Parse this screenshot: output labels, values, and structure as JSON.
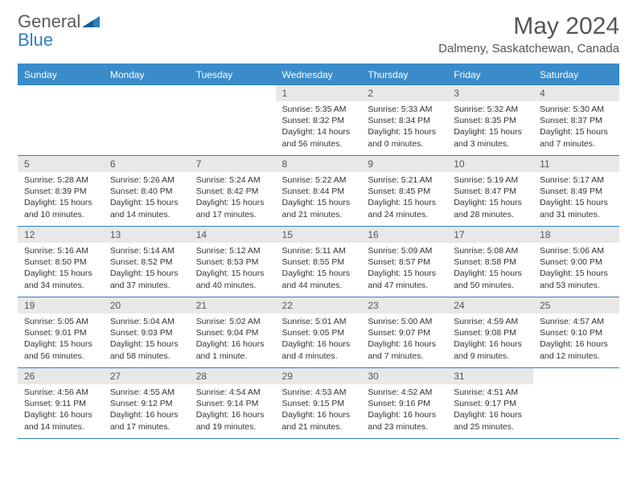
{
  "brand": {
    "part1": "General",
    "part2": "Blue"
  },
  "title": "May 2024",
  "location": "Dalmeny, Saskatchewan, Canada",
  "colors": {
    "header_bg": "#3a8bc9",
    "border": "#2d7fc1",
    "daynum_bg": "#e8e8e8",
    "text": "#333333",
    "title_text": "#555555"
  },
  "weekdays": [
    "Sunday",
    "Monday",
    "Tuesday",
    "Wednesday",
    "Thursday",
    "Friday",
    "Saturday"
  ],
  "weeks": [
    [
      {
        "n": "",
        "sr": "",
        "ss": "",
        "dl": ""
      },
      {
        "n": "",
        "sr": "",
        "ss": "",
        "dl": ""
      },
      {
        "n": "",
        "sr": "",
        "ss": "",
        "dl": ""
      },
      {
        "n": "1",
        "sr": "Sunrise: 5:35 AM",
        "ss": "Sunset: 8:32 PM",
        "dl": "Daylight: 14 hours and 56 minutes."
      },
      {
        "n": "2",
        "sr": "Sunrise: 5:33 AM",
        "ss": "Sunset: 8:34 PM",
        "dl": "Daylight: 15 hours and 0 minutes."
      },
      {
        "n": "3",
        "sr": "Sunrise: 5:32 AM",
        "ss": "Sunset: 8:35 PM",
        "dl": "Daylight: 15 hours and 3 minutes."
      },
      {
        "n": "4",
        "sr": "Sunrise: 5:30 AM",
        "ss": "Sunset: 8:37 PM",
        "dl": "Daylight: 15 hours and 7 minutes."
      }
    ],
    [
      {
        "n": "5",
        "sr": "Sunrise: 5:28 AM",
        "ss": "Sunset: 8:39 PM",
        "dl": "Daylight: 15 hours and 10 minutes."
      },
      {
        "n": "6",
        "sr": "Sunrise: 5:26 AM",
        "ss": "Sunset: 8:40 PM",
        "dl": "Daylight: 15 hours and 14 minutes."
      },
      {
        "n": "7",
        "sr": "Sunrise: 5:24 AM",
        "ss": "Sunset: 8:42 PM",
        "dl": "Daylight: 15 hours and 17 minutes."
      },
      {
        "n": "8",
        "sr": "Sunrise: 5:22 AM",
        "ss": "Sunset: 8:44 PM",
        "dl": "Daylight: 15 hours and 21 minutes."
      },
      {
        "n": "9",
        "sr": "Sunrise: 5:21 AM",
        "ss": "Sunset: 8:45 PM",
        "dl": "Daylight: 15 hours and 24 minutes."
      },
      {
        "n": "10",
        "sr": "Sunrise: 5:19 AM",
        "ss": "Sunset: 8:47 PM",
        "dl": "Daylight: 15 hours and 28 minutes."
      },
      {
        "n": "11",
        "sr": "Sunrise: 5:17 AM",
        "ss": "Sunset: 8:49 PM",
        "dl": "Daylight: 15 hours and 31 minutes."
      }
    ],
    [
      {
        "n": "12",
        "sr": "Sunrise: 5:16 AM",
        "ss": "Sunset: 8:50 PM",
        "dl": "Daylight: 15 hours and 34 minutes."
      },
      {
        "n": "13",
        "sr": "Sunrise: 5:14 AM",
        "ss": "Sunset: 8:52 PM",
        "dl": "Daylight: 15 hours and 37 minutes."
      },
      {
        "n": "14",
        "sr": "Sunrise: 5:12 AM",
        "ss": "Sunset: 8:53 PM",
        "dl": "Daylight: 15 hours and 40 minutes."
      },
      {
        "n": "15",
        "sr": "Sunrise: 5:11 AM",
        "ss": "Sunset: 8:55 PM",
        "dl": "Daylight: 15 hours and 44 minutes."
      },
      {
        "n": "16",
        "sr": "Sunrise: 5:09 AM",
        "ss": "Sunset: 8:57 PM",
        "dl": "Daylight: 15 hours and 47 minutes."
      },
      {
        "n": "17",
        "sr": "Sunrise: 5:08 AM",
        "ss": "Sunset: 8:58 PM",
        "dl": "Daylight: 15 hours and 50 minutes."
      },
      {
        "n": "18",
        "sr": "Sunrise: 5:06 AM",
        "ss": "Sunset: 9:00 PM",
        "dl": "Daylight: 15 hours and 53 minutes."
      }
    ],
    [
      {
        "n": "19",
        "sr": "Sunrise: 5:05 AM",
        "ss": "Sunset: 9:01 PM",
        "dl": "Daylight: 15 hours and 56 minutes."
      },
      {
        "n": "20",
        "sr": "Sunrise: 5:04 AM",
        "ss": "Sunset: 9:03 PM",
        "dl": "Daylight: 15 hours and 58 minutes."
      },
      {
        "n": "21",
        "sr": "Sunrise: 5:02 AM",
        "ss": "Sunset: 9:04 PM",
        "dl": "Daylight: 16 hours and 1 minute."
      },
      {
        "n": "22",
        "sr": "Sunrise: 5:01 AM",
        "ss": "Sunset: 9:05 PM",
        "dl": "Daylight: 16 hours and 4 minutes."
      },
      {
        "n": "23",
        "sr": "Sunrise: 5:00 AM",
        "ss": "Sunset: 9:07 PM",
        "dl": "Daylight: 16 hours and 7 minutes."
      },
      {
        "n": "24",
        "sr": "Sunrise: 4:59 AM",
        "ss": "Sunset: 9:08 PM",
        "dl": "Daylight: 16 hours and 9 minutes."
      },
      {
        "n": "25",
        "sr": "Sunrise: 4:57 AM",
        "ss": "Sunset: 9:10 PM",
        "dl": "Daylight: 16 hours and 12 minutes."
      }
    ],
    [
      {
        "n": "26",
        "sr": "Sunrise: 4:56 AM",
        "ss": "Sunset: 9:11 PM",
        "dl": "Daylight: 16 hours and 14 minutes."
      },
      {
        "n": "27",
        "sr": "Sunrise: 4:55 AM",
        "ss": "Sunset: 9:12 PM",
        "dl": "Daylight: 16 hours and 17 minutes."
      },
      {
        "n": "28",
        "sr": "Sunrise: 4:54 AM",
        "ss": "Sunset: 9:14 PM",
        "dl": "Daylight: 16 hours and 19 minutes."
      },
      {
        "n": "29",
        "sr": "Sunrise: 4:53 AM",
        "ss": "Sunset: 9:15 PM",
        "dl": "Daylight: 16 hours and 21 minutes."
      },
      {
        "n": "30",
        "sr": "Sunrise: 4:52 AM",
        "ss": "Sunset: 9:16 PM",
        "dl": "Daylight: 16 hours and 23 minutes."
      },
      {
        "n": "31",
        "sr": "Sunrise: 4:51 AM",
        "ss": "Sunset: 9:17 PM",
        "dl": "Daylight: 16 hours and 25 minutes."
      },
      {
        "n": "",
        "sr": "",
        "ss": "",
        "dl": ""
      }
    ]
  ]
}
